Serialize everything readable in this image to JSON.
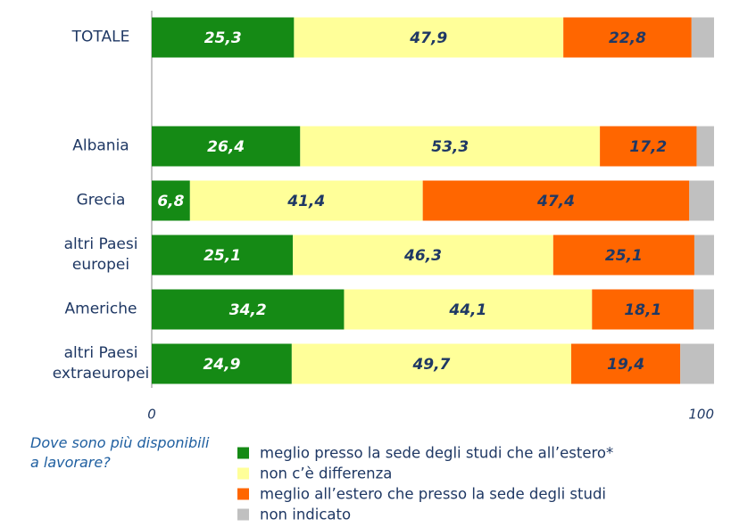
{
  "chart_data": {
    "type": "stacked_bar_horizontal",
    "categories": [
      "TOTALE",
      null,
      "Albania",
      "Grecia",
      "altri Paesi europei",
      "Americhe",
      "altri Paesi extraeuropei"
    ],
    "series": [
      {
        "name": "meglio presso la sede degli studi che all’estero*",
        "color": "#158a15",
        "label_color": "#ffffff",
        "values": [
          25.3,
          null,
          26.4,
          6.8,
          25.1,
          34.2,
          24.9
        ],
        "value_labels": [
          "25,3",
          null,
          "26,4",
          "6,8",
          "25,1",
          "34,2",
          "24,9"
        ]
      },
      {
        "name": "non c’è differenza",
        "color": "#ffff99",
        "label_color": "#1f3864",
        "values": [
          47.9,
          null,
          53.3,
          41.4,
          46.3,
          44.1,
          49.7
        ],
        "value_labels": [
          "47,9",
          null,
          "53,3",
          "41,4",
          "46,3",
          "44,1",
          "49,7"
        ]
      },
      {
        "name": "meglio all’estero che presso la sede degli studi",
        "color": "#ff6600",
        "label_color": "#1f3864",
        "values": [
          22.8,
          null,
          17.2,
          47.4,
          25.1,
          18.1,
          19.4
        ],
        "value_labels": [
          "22,8",
          null,
          "17,2",
          "47,4",
          "25,1",
          "18,1",
          "19,4"
        ]
      },
      {
        "name": "non indicato",
        "color": "#c0c0c0",
        "values": [
          4.0,
          null,
          3.1,
          4.4,
          3.5,
          3.6,
          6.0
        ]
      }
    ],
    "xlim": [
      0,
      100
    ],
    "xticks": [
      0,
      100
    ],
    "note": "Dove sono più disponibili a lavorare?"
  }
}
